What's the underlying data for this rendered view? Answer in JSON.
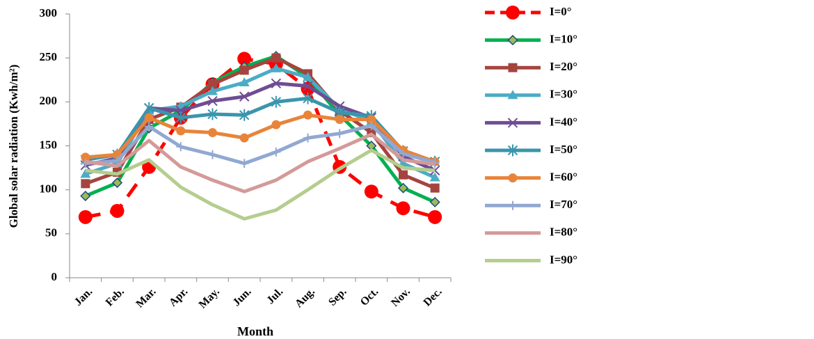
{
  "chart_data": {
    "type": "line",
    "x_label": "Month",
    "y_label": "Global solar radiation (Kwh/m²)",
    "categories": [
      "Jan.",
      "Feb.",
      "Mar.",
      "Apr.",
      "May.",
      "Jun.",
      "Jul.",
      "Aug.",
      "Sep.",
      "Oct.",
      "Nov.",
      "Dec."
    ],
    "ylim": [
      0,
      300
    ],
    "yticks": [
      0,
      50,
      100,
      150,
      200,
      250,
      300
    ],
    "legend": "right",
    "series": [
      {
        "name": "I=0°",
        "color": "#ff0000",
        "marker": "circle",
        "dashed": true,
        "values": [
          69,
          76,
          126,
          182,
          220,
          249,
          243,
          215,
          126,
          98,
          79,
          69
        ]
      },
      {
        "name": "I=10°",
        "color": "#00b050",
        "marker": "diamond",
        "values": [
          93,
          108,
          170,
          190,
          222,
          240,
          252,
          228,
          185,
          150,
          102,
          86
        ]
      },
      {
        "name": "I=20°",
        "color": "#a5443f",
        "marker": "square",
        "values": [
          107,
          120,
          180,
          194,
          220,
          236,
          250,
          232,
          190,
          165,
          117,
          102
        ]
      },
      {
        "name": "I=30°",
        "color": "#4bacc6",
        "marker": "triangle",
        "values": [
          118,
          130,
          190,
          195,
          212,
          222,
          238,
          228,
          192,
          178,
          130,
          114
        ]
      },
      {
        "name": "I=40°",
        "color": "#6f4d92",
        "marker": "x",
        "values": [
          128,
          136,
          193,
          190,
          201,
          206,
          221,
          218,
          195,
          182,
          138,
          122
        ]
      },
      {
        "name": "I=50°",
        "color": "#3a95ac",
        "marker": "star",
        "values": [
          134,
          140,
          193,
          182,
          186,
          185,
          200,
          204,
          188,
          184,
          144,
          132
        ]
      },
      {
        "name": "I=60°",
        "color": "#e8843a",
        "marker": "circle",
        "values": [
          137,
          140,
          182,
          167,
          165,
          159,
          174,
          185,
          180,
          180,
          145,
          132
        ]
      },
      {
        "name": "I=70°",
        "color": "#91a8d2",
        "marker": "plus",
        "values": [
          130,
          133,
          172,
          149,
          140,
          130,
          143,
          159,
          164,
          173,
          141,
          131
        ]
      },
      {
        "name": "I=80°",
        "color": "#d49a98",
        "marker": "none",
        "values": [
          132,
          127,
          156,
          126,
          111,
          98,
          111,
          132,
          147,
          163,
          134,
          129
        ]
      },
      {
        "name": "I=90°",
        "color": "#b5cd8e",
        "marker": "none",
        "values": [
          122,
          118,
          134,
          103,
          83,
          67,
          77,
          100,
          124,
          145,
          125,
          122
        ]
      }
    ]
  }
}
